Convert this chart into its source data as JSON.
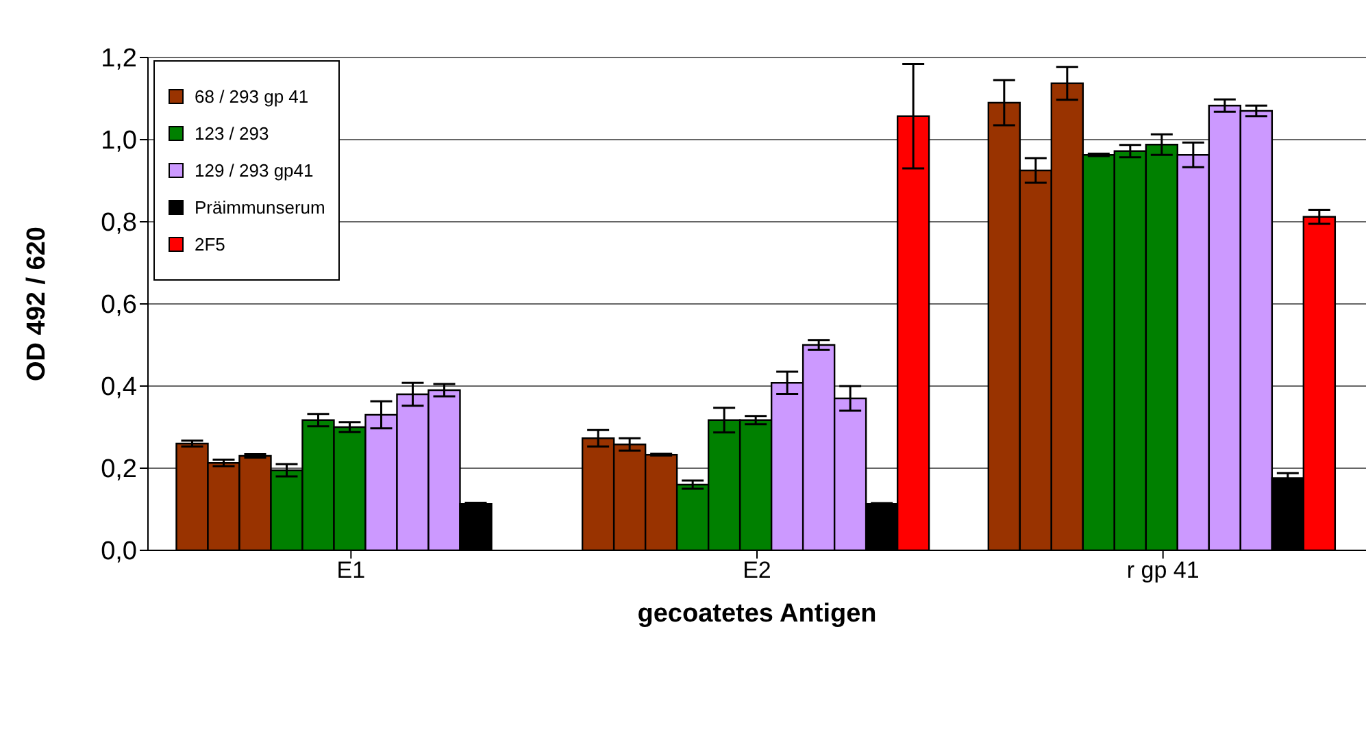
{
  "chart_data": {
    "type": "bar",
    "xlabel": "gecoatetes Antigen",
    "ylabel": "OD 492 / 620",
    "categories": [
      "E1",
      "E2",
      "r gp 41"
    ],
    "series": [
      {
        "name": "68 / 293 gp 41",
        "color": "#993300",
        "values": [
          0.26,
          0.273,
          1.09
        ],
        "errors": [
          0.007,
          0.02,
          0.055
        ]
      },
      {
        "color": "#993300",
        "values": [
          0.213,
          0.258,
          0.925
        ],
        "errors": [
          0.008,
          0.015,
          0.03
        ]
      },
      {
        "color": "#993300",
        "values": [
          0.23,
          0.233,
          1.137
        ],
        "errors": [
          0.004,
          0.002,
          0.04
        ]
      },
      {
        "name": "123 / 293",
        "color": "#008000",
        "values": [
          0.195,
          0.16,
          0.963
        ],
        "errors": [
          0.015,
          0.01,
          0.003
        ]
      },
      {
        "color": "#008000",
        "values": [
          0.317,
          0.317,
          0.972
        ],
        "errors": [
          0.015,
          0.03,
          0.015
        ]
      },
      {
        "color": "#008000",
        "values": [
          0.3,
          0.317,
          0.988
        ],
        "errors": [
          0.012,
          0.01,
          0.025
        ]
      },
      {
        "name": "129 / 293 gp41",
        "color": "#cc99ff",
        "values": [
          0.33,
          0.408,
          0.963
        ],
        "errors": [
          0.033,
          0.027,
          0.03
        ]
      },
      {
        "color": "#cc99ff",
        "values": [
          0.38,
          0.5,
          1.083
        ],
        "errors": [
          0.028,
          0.012,
          0.015
        ]
      },
      {
        "color": "#cc99ff",
        "values": [
          0.39,
          0.37,
          1.07
        ],
        "errors": [
          0.015,
          0.03,
          0.013
        ]
      },
      {
        "name": "Präimmunserum",
        "color": "#000000",
        "values": [
          0.113,
          0.113,
          0.176
        ],
        "errors": [
          0.003,
          0.002,
          0.012
        ]
      },
      {
        "name": "2F5",
        "color": "#ff0000",
        "values": [
          0,
          1.057,
          0.812
        ],
        "errors": [
          null,
          0.127,
          0.017
        ]
      }
    ],
    "ylim": [
      0,
      1.2
    ],
    "yticks": [
      {
        "value": 0,
        "label": "0,0"
      },
      {
        "value": 0.2,
        "label": "0,2"
      },
      {
        "value": 0.4,
        "label": "0,4"
      },
      {
        "value": 0.6,
        "label": "0,6"
      },
      {
        "value": 0.8,
        "label": "0,8"
      },
      {
        "value": 1,
        "label": "1,0"
      },
      {
        "value": 1.2,
        "label": "1,2"
      }
    ],
    "grid": "y",
    "legend": "top left"
  }
}
